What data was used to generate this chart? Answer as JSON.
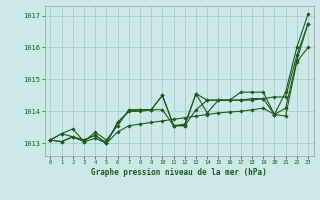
{
  "title": "Graphe pression niveau de la mer (hPa)",
  "bg_color": "#cce8e8",
  "grid_color": "#aacccc",
  "line_color": "#1a5c1a",
  "marker_color": "#1a5c1a",
  "xlim": [
    -0.5,
    23.5
  ],
  "ylim": [
    1012.6,
    1017.3
  ],
  "yticks": [
    1013,
    1014,
    1015,
    1016,
    1017
  ],
  "xticks": [
    0,
    1,
    2,
    3,
    4,
    5,
    6,
    7,
    8,
    9,
    10,
    11,
    12,
    13,
    14,
    15,
    16,
    17,
    18,
    19,
    20,
    21,
    22,
    23
  ],
  "series": [
    [
      1013.1,
      1013.3,
      1013.2,
      1013.05,
      1013.15,
      1013.0,
      1013.35,
      1013.55,
      1013.6,
      1013.65,
      1013.7,
      1013.75,
      1013.8,
      1013.85,
      1013.9,
      1013.95,
      1013.98,
      1014.0,
      1014.05,
      1014.1,
      1013.9,
      1013.85,
      1015.55,
      1016.0
    ],
    [
      1013.1,
      1013.05,
      1013.2,
      1013.1,
      1013.25,
      1013.0,
      1013.65,
      1014.0,
      1014.0,
      1014.05,
      1014.5,
      1013.55,
      1013.55,
      1014.55,
      1013.95,
      1014.35,
      1014.35,
      1014.35,
      1014.35,
      1014.4,
      1013.9,
      1014.1,
      1015.6,
      1016.75
    ],
    [
      1013.1,
      1013.05,
      1013.2,
      1013.1,
      1013.25,
      1013.0,
      1013.65,
      1014.0,
      1014.05,
      1014.05,
      1014.5,
      1013.55,
      1013.6,
      1014.55,
      1014.35,
      1014.35,
      1014.35,
      1014.6,
      1014.6,
      1014.6,
      1013.9,
      1014.6,
      1016.0,
      1017.05
    ],
    [
      1013.1,
      1013.3,
      1013.45,
      1013.05,
      1013.35,
      1013.1,
      1013.55,
      1014.05,
      1014.05,
      1014.05,
      1014.05,
      1013.55,
      1013.55,
      1014.05,
      1014.35,
      1014.35,
      1014.35,
      1014.35,
      1014.4,
      1014.4,
      1014.45,
      1014.45,
      1015.75,
      1016.75
    ]
  ],
  "figsize": [
    3.2,
    2.0
  ],
  "dpi": 100
}
